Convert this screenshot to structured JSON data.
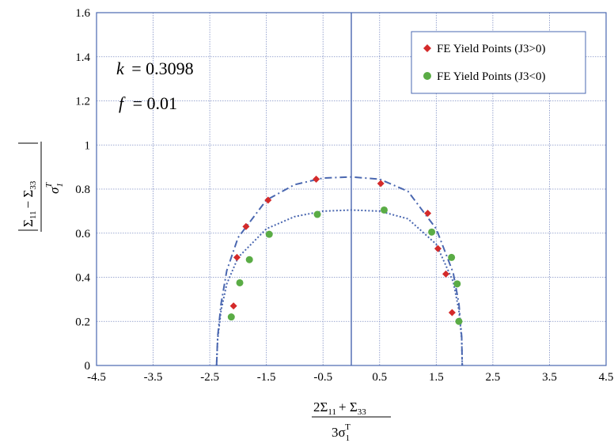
{
  "chart_data": {
    "type": "scatter",
    "xlim": [
      -4.5,
      4.5
    ],
    "ylim": [
      0,
      1.6
    ],
    "xticks": [
      "-4.5",
      "-3.5",
      "-2.5",
      "-1.5",
      "-0.5",
      "0.5",
      "1.5",
      "2.5",
      "3.5",
      "4.5"
    ],
    "yticks": [
      "0",
      "0.2",
      "0.4",
      "0.6",
      "0.8",
      "1",
      "1.2",
      "1.4",
      "1.6"
    ],
    "grid": true,
    "legend_position": "top-right",
    "annotations": {
      "k_var": "k",
      "k_value": "= 0.3098",
      "f_var": "f",
      "f_value": "= 0.01"
    },
    "xlabel": {
      "num_main": "2Σ",
      "num_sub1": "11",
      "num_plus": "+ Σ",
      "num_sub2": "33",
      "den_main": "3σ",
      "den_sub": "1",
      "den_sup": "T"
    },
    "ylabel": {
      "num_left": "Σ",
      "num_sub1": "11",
      "num_minus": "− Σ",
      "num_sub2": "33",
      "den_main": "σ",
      "den_sub": "1",
      "den_sup": "T"
    },
    "series": [
      {
        "name": "FE Yield Points (J3>0)",
        "marker": "diamond",
        "color": "#d42a2a",
        "x": [
          -2.08,
          -2.02,
          -1.86,
          -1.47,
          -0.62,
          0.52,
          1.35,
          1.53,
          1.67,
          1.78
        ],
        "y": [
          0.27,
          0.49,
          0.63,
          0.75,
          0.845,
          0.825,
          0.69,
          0.53,
          0.415,
          0.24
        ]
      },
      {
        "name": "FE Yield Points (J3<0)",
        "marker": "circle",
        "color": "#5aac45",
        "x": [
          -2.12,
          -1.97,
          -1.8,
          -1.45,
          -0.6,
          0.58,
          1.42,
          1.77,
          1.87,
          1.9
        ],
        "y": [
          0.22,
          0.375,
          0.48,
          0.595,
          0.685,
          0.705,
          0.605,
          0.49,
          0.37,
          0.2
        ]
      }
    ],
    "curves": [
      {
        "style": "dash-dot",
        "color": "#4a67b0",
        "x": [
          -2.38,
          -2.36,
          -2.3,
          -2.2,
          -2.0,
          -1.5,
          -1.0,
          -0.5,
          0.0,
          0.5,
          1.0,
          1.5,
          1.8,
          1.9,
          1.95,
          1.96
        ],
        "y": [
          0.0,
          0.13,
          0.28,
          0.43,
          0.58,
          0.75,
          0.82,
          0.85,
          0.855,
          0.845,
          0.79,
          0.62,
          0.42,
          0.28,
          0.13,
          0.0
        ]
      },
      {
        "style": "dotted",
        "color": "#4a67b0",
        "x": [
          -2.38,
          -2.36,
          -2.3,
          -2.2,
          -2.0,
          -1.5,
          -1.0,
          -0.5,
          0.0,
          0.5,
          1.0,
          1.5,
          1.8,
          1.9,
          1.95,
          1.96
        ],
        "y": [
          0.0,
          0.12,
          0.25,
          0.37,
          0.49,
          0.62,
          0.675,
          0.7,
          0.705,
          0.7,
          0.665,
          0.55,
          0.38,
          0.25,
          0.12,
          0.0
        ]
      }
    ]
  }
}
